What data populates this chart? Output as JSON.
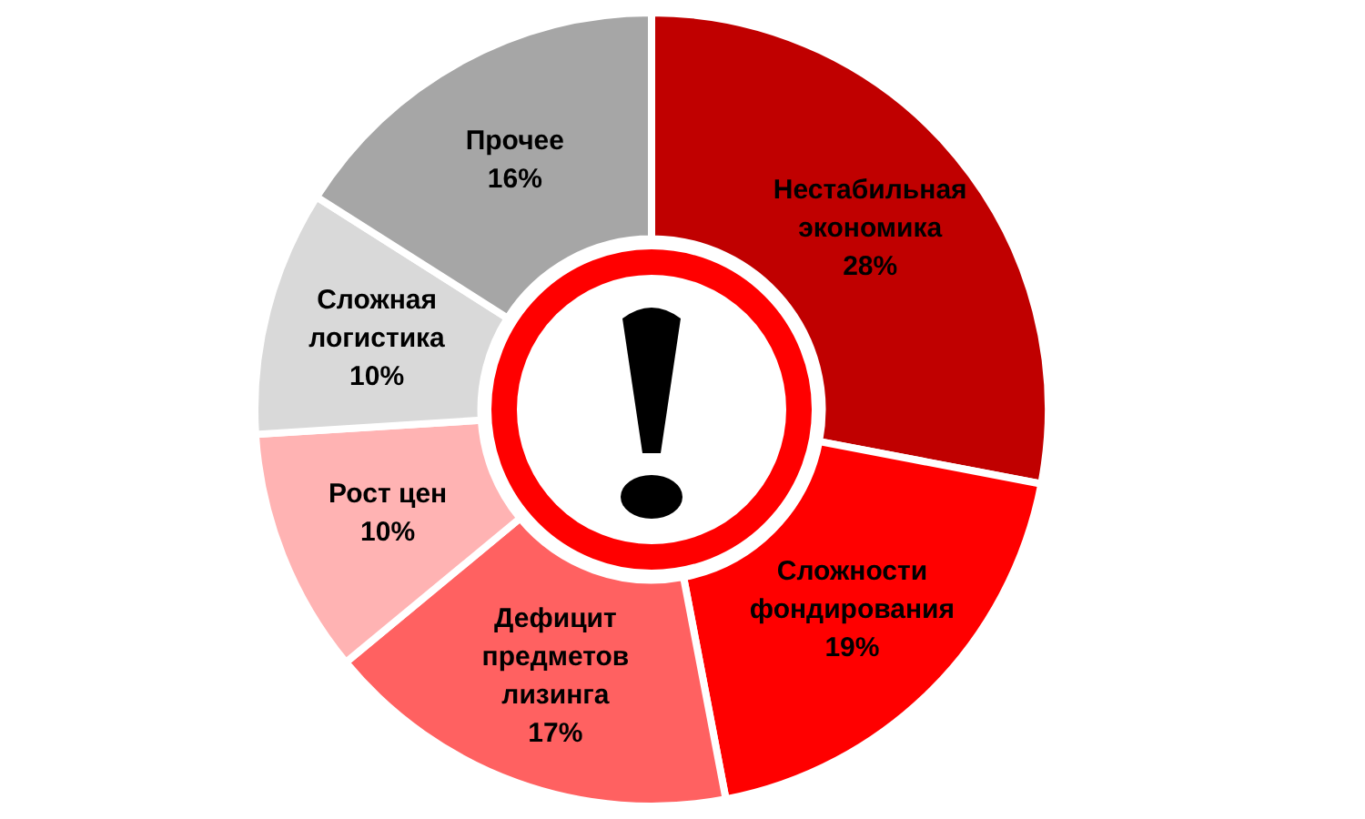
{
  "chart_data": {
    "type": "donut",
    "categories": [
      "Нестабильная экономика",
      "Сложности фондирования",
      "Дефицит предметов лизинга",
      "Рост цен",
      "Сложная логистика",
      "Прочее"
    ],
    "values": [
      28,
      19,
      17,
      10,
      10,
      16
    ],
    "colors": [
      "#c00000",
      "#ff0000",
      "#ff6161",
      "#ffb3b3",
      "#d9d9d9",
      "#a6a6a6"
    ],
    "value_labels": [
      "28%",
      "19%",
      "17%",
      "10%",
      "10%",
      "16%"
    ],
    "legend": false
  }
}
